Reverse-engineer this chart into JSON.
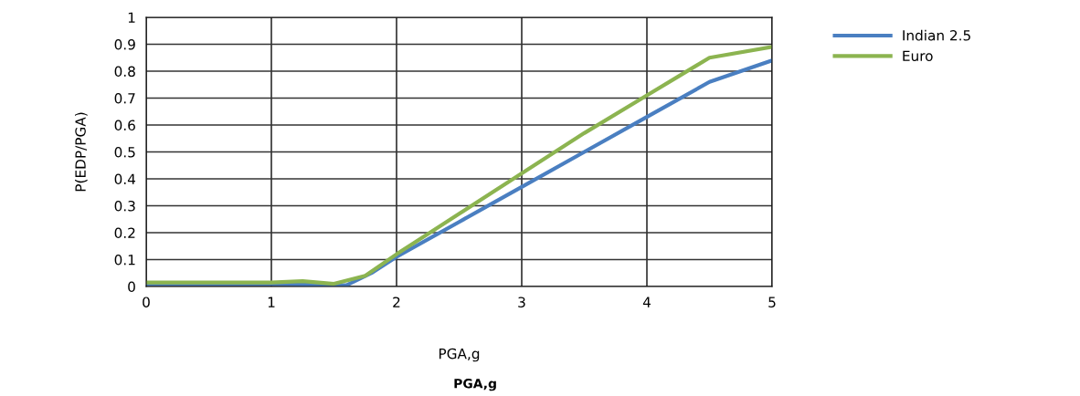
{
  "chart_data": {
    "type": "line",
    "xlabel": "PGA,g",
    "ylabel": "P(EDP/PGA)",
    "annotations": [
      "PGA,g"
    ],
    "xlim": [
      0,
      5
    ],
    "xticks": [
      0,
      1,
      2,
      3,
      4,
      5
    ],
    "ylim": [
      0,
      1
    ],
    "yticks": [
      0,
      0.1,
      0.2,
      0.3,
      0.4,
      0.5,
      0.6,
      0.7,
      0.8,
      0.9,
      1
    ],
    "grid": true,
    "legend": "right",
    "marker": "none",
    "line_style": "solid",
    "series": [
      {
        "name": "Indian 2.5",
        "color": "#4a7fc1",
        "x": [
          0,
          1,
          1.5,
          1.6,
          1.8,
          2,
          2.5,
          3,
          3.5,
          4,
          4.5,
          5
        ],
        "values": [
          0.01,
          0.01,
          0.005,
          0.005,
          0.05,
          0.11,
          0.24,
          0.37,
          0.5,
          0.63,
          0.76,
          0.84
        ]
      },
      {
        "name": "Euro",
        "color": "#8cb450",
        "x": [
          0,
          1,
          1.25,
          1.5,
          1.75,
          2,
          2.5,
          3,
          3.5,
          4,
          4.25,
          4.5,
          5
        ],
        "values": [
          0.015,
          0.015,
          0.02,
          0.01,
          0.04,
          0.12,
          0.27,
          0.42,
          0.57,
          0.71,
          0.78,
          0.85,
          0.89
        ]
      }
    ]
  }
}
